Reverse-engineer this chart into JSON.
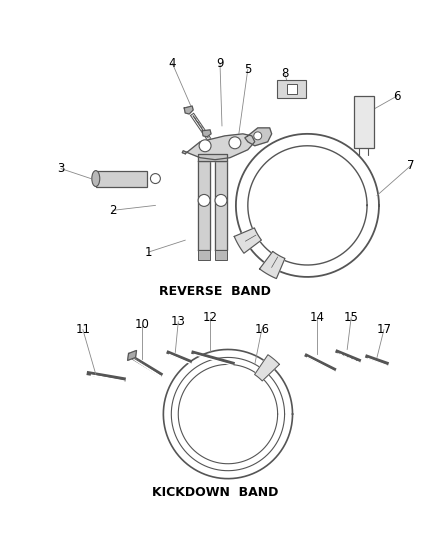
{
  "background_color": "#ffffff",
  "line_color": "#555555",
  "text_color": "#000000",
  "reverse_band_label": "REVERSE  BAND",
  "kickdown_band_label": "KICKDOWN  BAND",
  "label_fontsize": 9,
  "number_fontsize": 8.5,
  "fig_width": 4.38,
  "fig_height": 5.33,
  "dpi": 100
}
